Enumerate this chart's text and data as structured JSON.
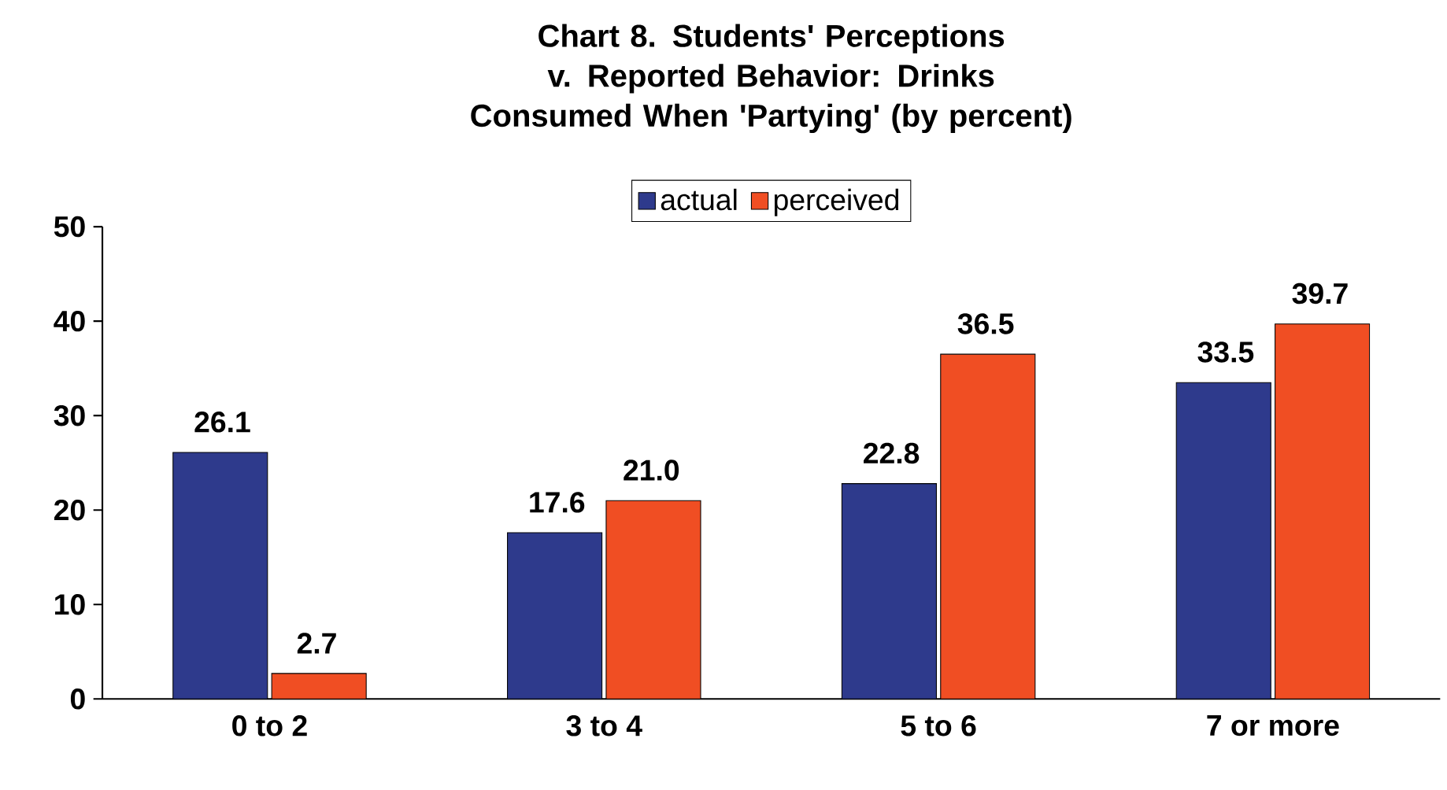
{
  "chart_data": {
    "type": "bar",
    "title": "Chart 8. Students' Perceptions v. Reported Behavior: Drinks Consumed When 'Partying' (by percent)",
    "categories": [
      "0 to 2",
      "3 to 4",
      "5 to 6",
      "7 or more"
    ],
    "series": [
      {
        "name": "actual",
        "color": "#2e3a8c",
        "values": [
          26.1,
          17.6,
          22.8,
          33.5
        ],
        "value_labels": [
          "26.1",
          "17.6",
          "22.8",
          "33.5"
        ]
      },
      {
        "name": "perceived",
        "color": "#f04e23",
        "values": [
          2.7,
          21.0,
          36.5,
          39.7
        ],
        "value_labels": [
          "2.7",
          "21.0",
          "36.5",
          "39.7"
        ]
      }
    ],
    "ylim": [
      0,
      50
    ],
    "yticks": [
      0,
      10,
      20,
      30,
      40,
      50
    ],
    "grid": false,
    "legend": "top"
  }
}
